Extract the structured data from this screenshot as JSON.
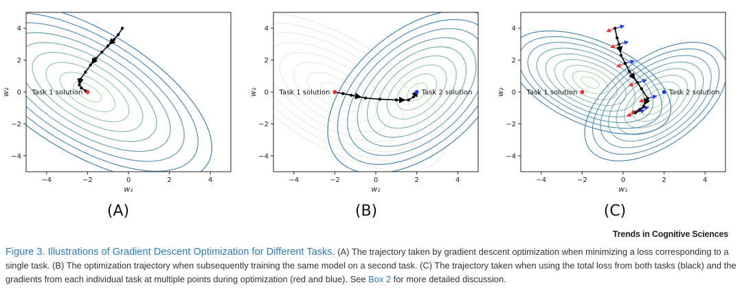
{
  "figure": {
    "panels": [
      {
        "label": "(A)",
        "xlabel": "w₁",
        "ylabel": "w₂",
        "xlim": [
          -5,
          5
        ],
        "ylim": [
          -5,
          5
        ],
        "xticks": [
          -4,
          -2,
          0,
          2,
          4
        ],
        "yticks": [
          -4,
          -2,
          0,
          2,
          4
        ],
        "contour_color": "#3a7fb4",
        "annotations": [
          {
            "text": "Task 1 solution",
            "x": -2,
            "y": 0,
            "color": "#e8322b"
          }
        ],
        "trajectory": [
          [
            -0.3,
            4.0
          ],
          [
            -0.5,
            3.6
          ],
          [
            -0.7,
            3.3
          ],
          [
            -1.0,
            2.9
          ],
          [
            -1.3,
            2.5
          ],
          [
            -1.6,
            2.1
          ],
          [
            -1.85,
            1.7
          ],
          [
            -2.1,
            1.25
          ],
          [
            -2.35,
            0.8
          ],
          [
            -2.4,
            0.45
          ],
          [
            -2.3,
            0.25
          ],
          [
            -2.1,
            0.08
          ],
          [
            -2.0,
            0.0
          ]
        ]
      },
      {
        "label": "(B)",
        "xlabel": "w₁",
        "ylabel": "w₂",
        "xlim": [
          -5,
          5
        ],
        "ylim": [
          -5,
          5
        ],
        "xticks": [
          -4,
          -2,
          0,
          2,
          4
        ],
        "yticks": [
          -4,
          -2,
          0,
          2,
          4
        ],
        "contour_color": "#3a7fb4",
        "annotations": [
          {
            "text": "Task 1 solution",
            "x": -2,
            "y": 0,
            "color": "#e8322b"
          },
          {
            "text": "Task 2 solution",
            "x": 2,
            "y": 0,
            "color": "#1f3fd6"
          }
        ],
        "trajectory": [
          [
            -2.0,
            0.0
          ],
          [
            -1.6,
            -0.1
          ],
          [
            -1.2,
            -0.2
          ],
          [
            -0.5,
            -0.38
          ],
          [
            0.2,
            -0.45
          ],
          [
            1.0,
            -0.5
          ],
          [
            1.6,
            -0.5
          ],
          [
            1.85,
            -0.3
          ],
          [
            1.95,
            -0.1
          ],
          [
            2.0,
            0.0
          ]
        ]
      },
      {
        "label": "(C)",
        "xlabel": "w₁",
        "ylabel": "w₂",
        "xlim": [
          -5,
          5
        ],
        "ylim": [
          -5,
          5
        ],
        "xticks": [
          -4,
          -2,
          0,
          2,
          4
        ],
        "yticks": [
          -4,
          -2,
          0,
          2,
          4
        ],
        "contour_color": "#3a7fb4",
        "annotations": [
          {
            "text": "Task 1 solution",
            "x": -2,
            "y": 0,
            "color": "#e8322b"
          },
          {
            "text": "Task 2 solution",
            "x": 2,
            "y": 0,
            "color": "#1f3fd6"
          }
        ],
        "trajectory": [
          [
            -0.4,
            4.0
          ],
          [
            -0.3,
            3.4
          ],
          [
            -0.2,
            3.0
          ],
          [
            -0.1,
            2.3
          ],
          [
            0.1,
            1.8
          ],
          [
            0.3,
            1.3
          ],
          [
            0.7,
            0.6
          ],
          [
            0.9,
            0.2
          ],
          [
            1.2,
            -0.4
          ],
          [
            1.0,
            -0.9
          ],
          [
            0.8,
            -1.1
          ],
          [
            0.6,
            -1.3
          ]
        ]
      }
    ],
    "attribution": "Trends in Cognitive Sciences",
    "caption": {
      "title": "Figure 3. Illustrations of Gradient Descent Optimization for Different Tasks.",
      "body": " (A) The trajectory taken by gradient descent optimization when minimizing a loss corresponding to a single task. (B) The optimization trajectory when subsequently training the same model on a second task. (C) The trajectory taken when using the total loss from both tasks (black) and the gradients from each individual task at multiple points during optimization (red and blue). See ",
      "link": "Box 2",
      "end": " for more detailed discussion."
    }
  }
}
